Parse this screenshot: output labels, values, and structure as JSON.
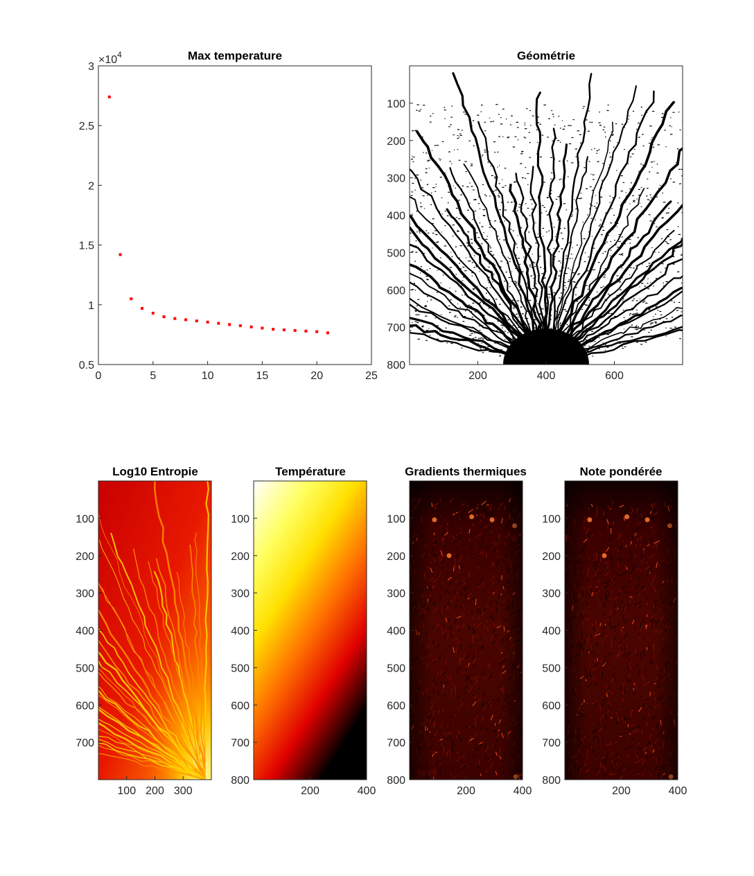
{
  "figure_colors": {
    "background": "#ffffff",
    "axis": "#262626",
    "marker": "#ff0000"
  },
  "chart_data": [
    {
      "type": "scatter",
      "title": "Max temperature",
      "xlim": [
        0,
        25
      ],
      "ylim": [
        5000,
        30000
      ],
      "x_ticks": [
        0,
        5,
        10,
        15,
        20,
        25
      ],
      "y_ticks": [
        5000,
        10000,
        15000,
        20000,
        25000,
        30000
      ],
      "y_tick_labels": [
        "0.5",
        "1",
        "1.5",
        "2",
        "2.5",
        "3"
      ],
      "y_exponent_label": "×10",
      "y_exponent_power": "4",
      "marker_color": "#ff0000",
      "series": [
        {
          "x": [
            1,
            2,
            3,
            4,
            5,
            6,
            7,
            8,
            9,
            10,
            11,
            12,
            13,
            14,
            15,
            16,
            17,
            18,
            19,
            20,
            21
          ],
          "y": [
            27400,
            14200,
            10500,
            9700,
            9300,
            9000,
            8850,
            8750,
            8650,
            8550,
            8450,
            8350,
            8250,
            8150,
            8050,
            7950,
            7900,
            7850,
            7800,
            7750,
            7650
          ]
        }
      ]
    },
    {
      "type": "heatmap",
      "title": "Géométrie",
      "colormap": "binary (black = solid, white = void)",
      "x_ticks": [
        200,
        400,
        600
      ],
      "y_ticks": [
        100,
        200,
        300,
        400,
        500,
        600,
        700,
        800
      ],
      "xlim": [
        0,
        800
      ],
      "ylim": [
        0,
        800
      ]
    },
    {
      "type": "heatmap",
      "title": "Log10 Entropie",
      "colormap": "hot",
      "x_ticks": [
        100,
        200,
        300
      ],
      "y_ticks": [
        100,
        200,
        300,
        400,
        500,
        600,
        700
      ],
      "xlim": [
        0,
        400
      ],
      "ylim": [
        0,
        800
      ]
    },
    {
      "type": "heatmap",
      "title": "Température",
      "colormap": "hot",
      "x_ticks": [
        200,
        400
      ],
      "y_ticks": [
        100,
        200,
        300,
        400,
        500,
        600,
        700,
        800
      ],
      "xlim": [
        0,
        400
      ],
      "ylim": [
        0,
        800
      ]
    },
    {
      "type": "heatmap",
      "title": "Gradients thermiques",
      "colormap": "hot",
      "x_ticks": [
        200,
        400
      ],
      "y_ticks": [
        100,
        200,
        300,
        400,
        500,
        600,
        700,
        800
      ],
      "xlim": [
        0,
        400
      ],
      "ylim": [
        0,
        800
      ]
    },
    {
      "type": "heatmap",
      "title": "Note pondérée",
      "colormap": "hot",
      "x_ticks": [
        200,
        400
      ],
      "y_ticks": [
        100,
        200,
        300,
        400,
        500,
        600,
        700,
        800
      ],
      "xlim": [
        0,
        400
      ],
      "ylim": [
        0,
        800
      ]
    }
  ]
}
